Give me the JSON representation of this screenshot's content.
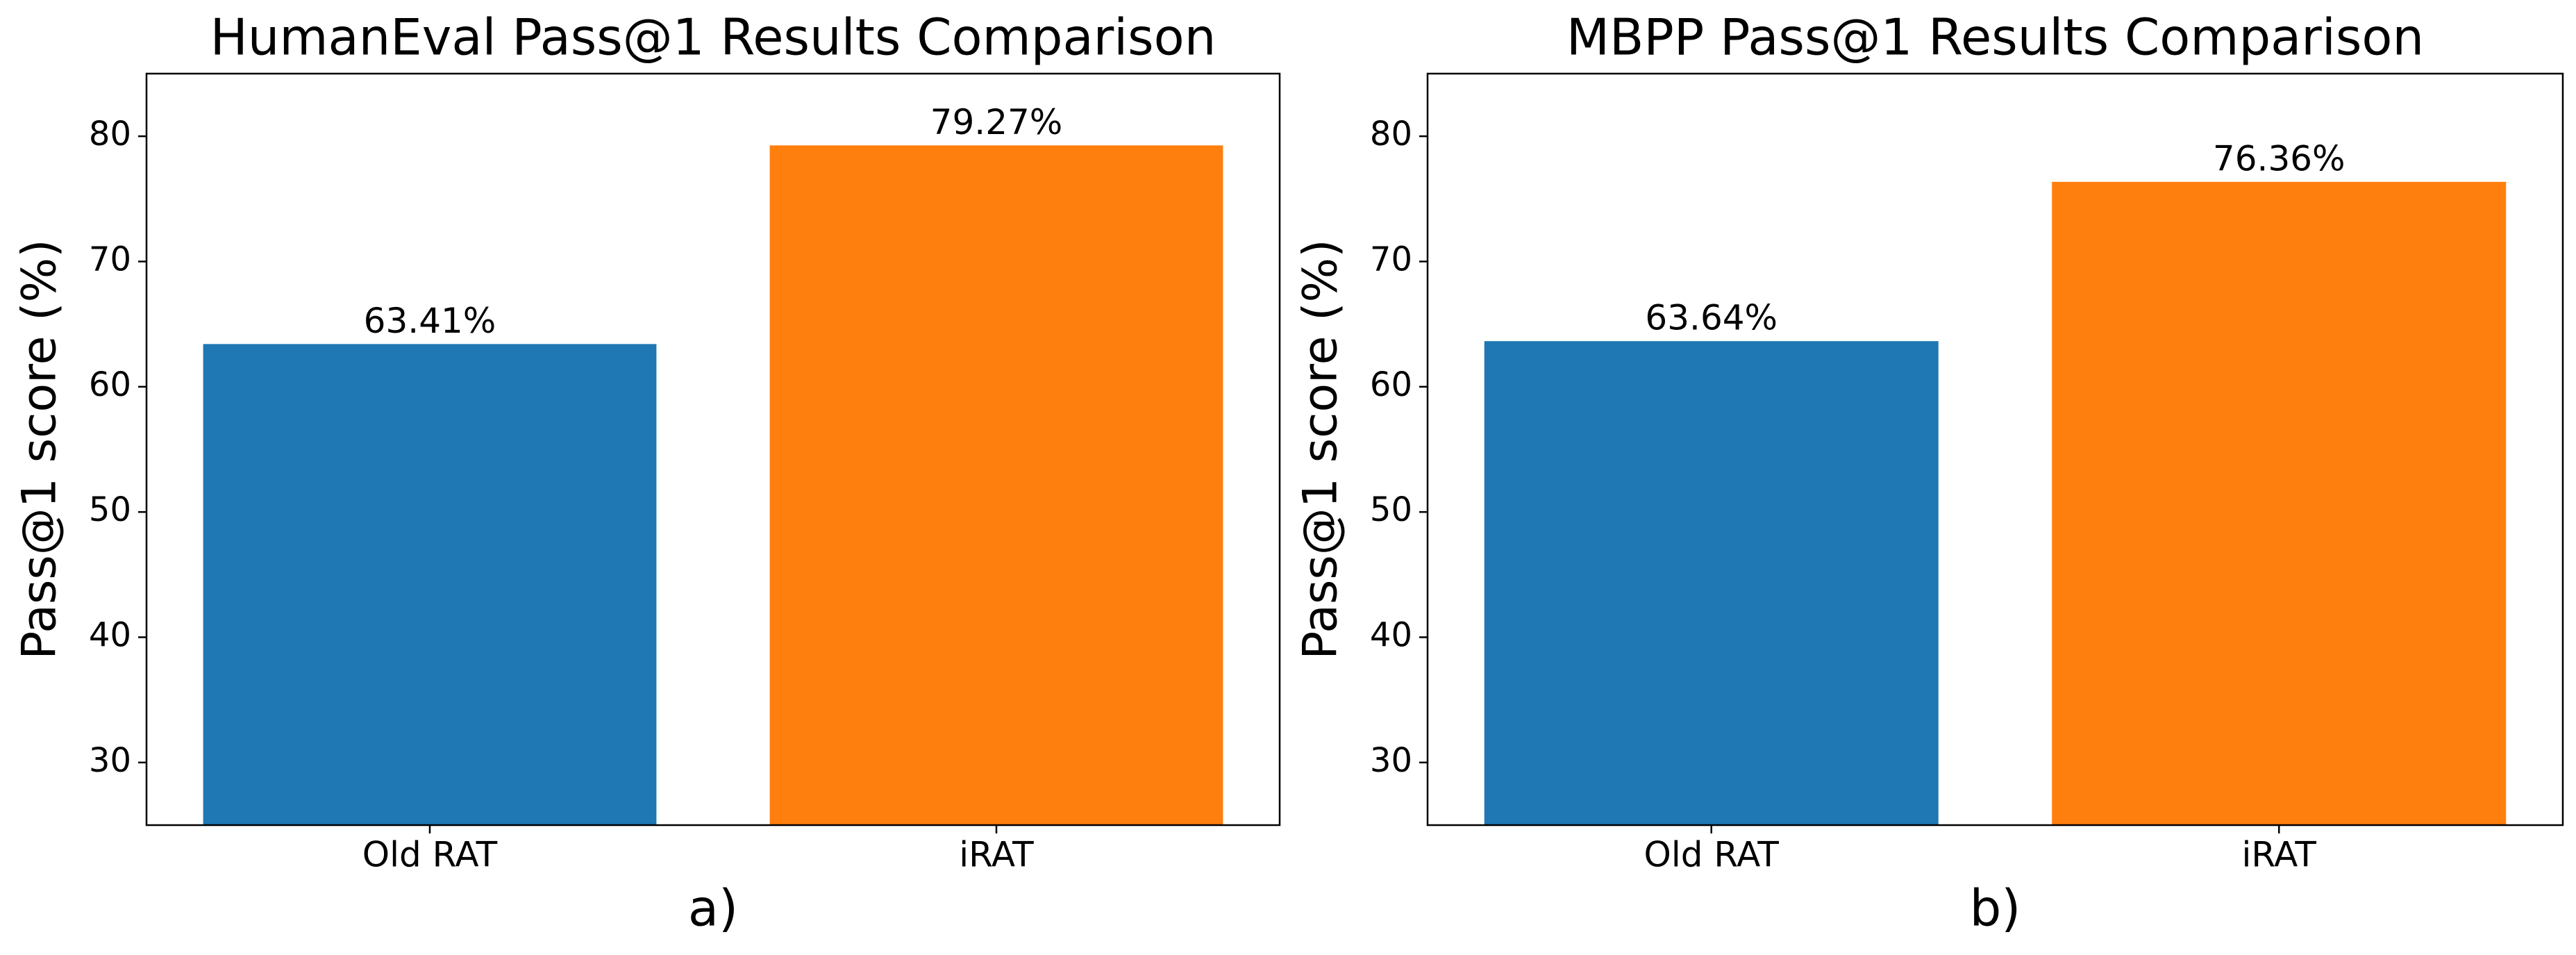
{
  "chart_data": [
    {
      "type": "bar",
      "title": "HumanEval Pass@1 Results Comparison",
      "ylabel": "Pass@1 score (%)",
      "xlabel": "a)",
      "categories": [
        "Old RAT",
        "iRAT"
      ],
      "values": [
        63.41,
        79.27
      ],
      "value_labels": [
        "63.41%",
        "79.27%"
      ],
      "colors": [
        "#1f77b4",
        "#ff7f0e"
      ],
      "ylim": [
        25,
        85
      ],
      "yticks": [
        30,
        40,
        50,
        60,
        70,
        80
      ]
    },
    {
      "type": "bar",
      "title": "MBPP Pass@1 Results Comparison",
      "ylabel": "Pass@1 score (%)",
      "xlabel": "b)",
      "categories": [
        "Old RAT",
        "iRAT"
      ],
      "values": [
        63.64,
        76.36
      ],
      "value_labels": [
        "63.64%",
        "76.36%"
      ],
      "colors": [
        "#1f77b4",
        "#ff7f0e"
      ],
      "ylim": [
        25,
        85
      ],
      "yticks": [
        30,
        40,
        50,
        60,
        70,
        80
      ]
    }
  ]
}
